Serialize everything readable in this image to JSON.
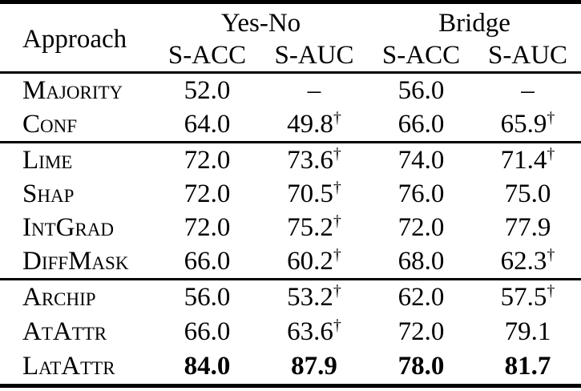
{
  "table": {
    "corner_header": "Approach",
    "groups": [
      {
        "label": "Yes-No"
      },
      {
        "label": "Bridge"
      }
    ],
    "subheaders": [
      "S-ACC",
      "S-AUC",
      "S-ACC",
      "S-AUC"
    ],
    "sections": [
      {
        "rows": [
          {
            "name": "Majority",
            "bold": false,
            "cells": [
              {
                "v": "52.0"
              },
              {
                "v": "–"
              },
              {
                "v": "56.0"
              },
              {
                "v": "–"
              }
            ]
          },
          {
            "name": "Conf",
            "bold": false,
            "cells": [
              {
                "v": "64.0"
              },
              {
                "v": "49.8",
                "sup": "†"
              },
              {
                "v": "66.0"
              },
              {
                "v": "65.9",
                "sup": "†"
              }
            ]
          }
        ]
      },
      {
        "rows": [
          {
            "name": "Lime",
            "bold": false,
            "cells": [
              {
                "v": "72.0"
              },
              {
                "v": "73.6",
                "sup": "†"
              },
              {
                "v": "74.0"
              },
              {
                "v": "71.4",
                "sup": "†"
              }
            ]
          },
          {
            "name": "Shap",
            "bold": false,
            "cells": [
              {
                "v": "72.0"
              },
              {
                "v": "70.5",
                "sup": "†"
              },
              {
                "v": "76.0"
              },
              {
                "v": "75.0"
              }
            ]
          },
          {
            "name": "IntGrad",
            "bold": false,
            "cells": [
              {
                "v": "72.0"
              },
              {
                "v": "75.2",
                "sup": "†"
              },
              {
                "v": "72.0"
              },
              {
                "v": "77.9"
              }
            ]
          },
          {
            "name": "DiffMask",
            "bold": false,
            "cells": [
              {
                "v": "66.0"
              },
              {
                "v": "60.2",
                "sup": "†"
              },
              {
                "v": "68.0"
              },
              {
                "v": "62.3",
                "sup": "†"
              }
            ]
          }
        ]
      },
      {
        "rows": [
          {
            "name": "Archip",
            "bold": false,
            "cells": [
              {
                "v": "56.0"
              },
              {
                "v": "53.2",
                "sup": "†"
              },
              {
                "v": "62.0"
              },
              {
                "v": "57.5",
                "sup": "†"
              }
            ]
          },
          {
            "name": "AtAttr",
            "bold": false,
            "cells": [
              {
                "v": "66.0"
              },
              {
                "v": "63.6",
                "sup": "†"
              },
              {
                "v": "72.0"
              },
              {
                "v": "79.1"
              }
            ]
          },
          {
            "name": "LatAttr",
            "bold": true,
            "cells": [
              {
                "v": "84.0"
              },
              {
                "v": "87.9"
              },
              {
                "v": "78.0"
              },
              {
                "v": "81.7"
              }
            ]
          }
        ]
      }
    ]
  },
  "chart_data": {
    "type": "table",
    "column_groups": [
      "Yes-No",
      "Bridge"
    ],
    "columns": [
      "Approach",
      "Yes-No S-ACC",
      "Yes-No S-AUC",
      "Bridge S-ACC",
      "Bridge S-AUC"
    ],
    "rows": [
      [
        "Majority",
        "52.0",
        "–",
        "56.0",
        "–"
      ],
      [
        "Conf",
        "64.0",
        "49.8†",
        "66.0",
        "65.9†"
      ],
      [
        "Lime",
        "72.0",
        "73.6†",
        "74.0",
        "71.4†"
      ],
      [
        "Shap",
        "72.0",
        "70.5†",
        "76.0",
        "75.0"
      ],
      [
        "IntGrad",
        "72.0",
        "75.2†",
        "72.0",
        "77.9"
      ],
      [
        "DiffMask",
        "66.0",
        "60.2†",
        "68.0",
        "62.3†"
      ],
      [
        "Archip",
        "56.0",
        "53.2†",
        "62.0",
        "57.5†"
      ],
      [
        "AtAttr",
        "66.0",
        "63.6†",
        "72.0",
        "79.1"
      ],
      [
        "LatAttr",
        "84.0",
        "87.9",
        "78.0",
        "81.7"
      ]
    ],
    "bold_row": "LatAttr"
  }
}
